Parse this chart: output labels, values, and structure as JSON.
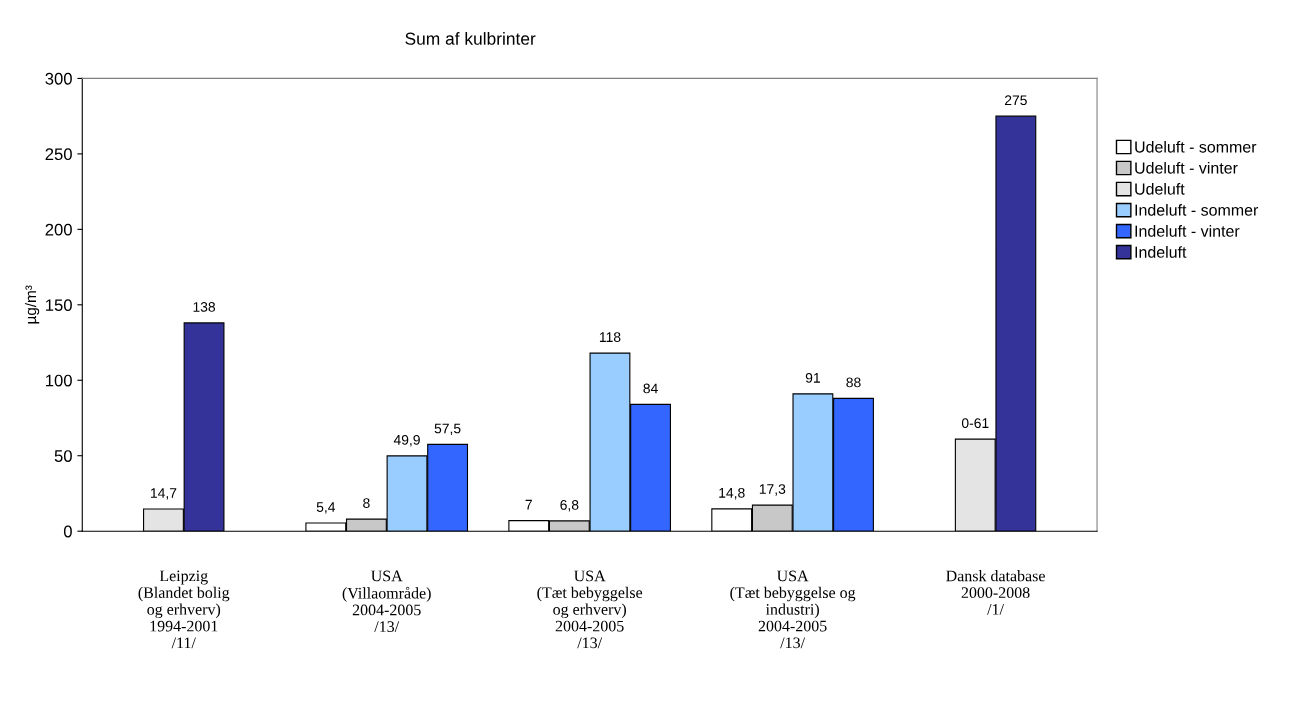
{
  "chart_data": {
    "type": "bar",
    "title": "Sum af kulbrinter",
    "ylabel": "µg/m³",
    "categories": [
      "Leipzig\n(Blandet bolig\nog erhverv)\n1994-2001\n/11/",
      "USA\n(Villaområde)\n2004-2005\n/13/",
      "USA\n(Tæt bebyggelse\nog erhverv)\n2004-2005\n/13/",
      "USA\n(Tæt bebyggelse og\nindustri)\n2004-2005\n/13/",
      "Dansk database\n2000-2008\n/1/"
    ],
    "series": [
      {
        "name": "Udeluft - sommer",
        "color": "#ffffff",
        "values": [
          null,
          5.4,
          7,
          14.8,
          null
        ],
        "value_labels": [
          null,
          "5,4",
          "7",
          "14,8",
          null
        ]
      },
      {
        "name": "Udeluft - vinter",
        "color": "#c8c8c8",
        "values": [
          null,
          8,
          6.8,
          17.3,
          null
        ],
        "value_labels": [
          null,
          "8",
          "6,8",
          "17,3",
          null
        ]
      },
      {
        "name": "Udeluft",
        "color": "#e4e4e4",
        "values": [
          14.7,
          null,
          null,
          null,
          61
        ],
        "value_labels": [
          "14,7",
          null,
          null,
          null,
          "0-61"
        ]
      },
      {
        "name": "Indeluft - sommer",
        "color": "#99ccff",
        "values": [
          null,
          49.9,
          118,
          91,
          null
        ],
        "value_labels": [
          null,
          "49,9",
          "118",
          "91",
          null
        ]
      },
      {
        "name": "Indeluft - vinter",
        "color": "#3366ff",
        "values": [
          null,
          57.5,
          84,
          88,
          null
        ],
        "value_labels": [
          null,
          "57,5",
          "84",
          "88",
          null
        ]
      },
      {
        "name": "Indeluft",
        "color": "#333399",
        "values": [
          138,
          null,
          null,
          null,
          275
        ],
        "value_labels": [
          "138",
          null,
          null,
          null,
          "275"
        ]
      }
    ],
    "ylim": [
      0,
      300
    ],
    "yticks": [
      0,
      50,
      100,
      150,
      200,
      250,
      300
    ],
    "grid": false,
    "legend": "right"
  }
}
